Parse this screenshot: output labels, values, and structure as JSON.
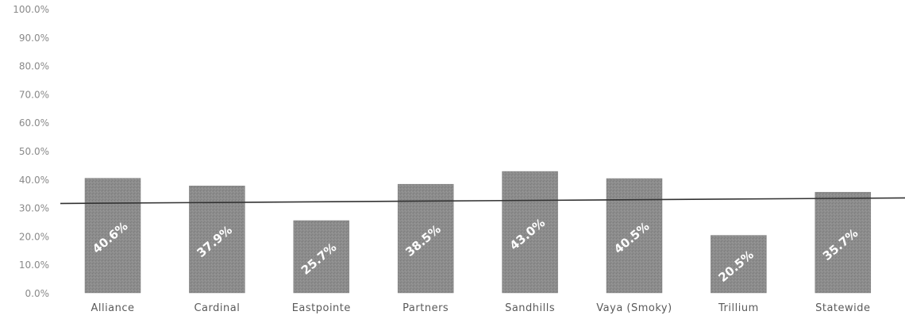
{
  "chart_data": {
    "type": "bar",
    "categories": [
      "Alliance",
      "Cardinal",
      "Eastpointe",
      "Partners",
      "Sandhills",
      "Vaya (Smoky)",
      "Trillium",
      "Statewide"
    ],
    "values": [
      40.6,
      37.9,
      25.7,
      38.5,
      43.0,
      40.5,
      20.5,
      35.7
    ],
    "data_labels": [
      "40.6%",
      "37.9%",
      "25.7%",
      "38.5%",
      "43.0%",
      "40.5%",
      "20.5%",
      "35.7%"
    ],
    "y_ticks": [
      "0.0%",
      "10.0%",
      "20.0%",
      "30.0%",
      "40.0%",
      "50.0%",
      "60.0%",
      "70.0%",
      "80.0%",
      "90.0%",
      "100.0%"
    ],
    "ylim": [
      0,
      100
    ],
    "reference_line": 32,
    "grid": false,
    "legend": "none",
    "bar_color": "#888888",
    "line_color": "#333333",
    "title": "",
    "xlabel": "",
    "ylabel": ""
  }
}
